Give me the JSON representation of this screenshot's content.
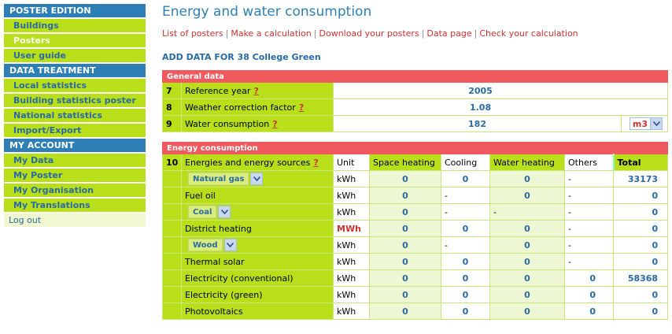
{
  "sidebar": {
    "sections": [
      {
        "title": "POSTER EDITION",
        "items": [
          {
            "label": "Buildings",
            "active": false
          },
          {
            "label": "Posters",
            "active": true
          },
          {
            "label": "User guide",
            "active": false
          }
        ]
      },
      {
        "title": "DATA TREATMENT",
        "items": [
          {
            "label": "Local statistics",
            "active": false
          },
          {
            "label": "Building statistics poster",
            "active": false
          },
          {
            "label": "National statistics",
            "active": false
          },
          {
            "label": "Import/Export",
            "active": false
          }
        ]
      },
      {
        "title": "MY ACCOUNT",
        "items": [
          {
            "label": "My Data",
            "active": false
          },
          {
            "label": "My Poster",
            "active": false
          },
          {
            "label": "My Organisation",
            "active": false
          },
          {
            "label": "My Translations",
            "active": false
          }
        ]
      }
    ],
    "logout": "Log out"
  },
  "header": {
    "title": "Energy and water consumption",
    "links": [
      "List of posters",
      "Make a calculation",
      "Download your posters",
      "Data page",
      "Check your calculation"
    ],
    "subtitle": "ADD DATA FOR 38 College Green"
  },
  "general": {
    "section_title": "General data",
    "rows": [
      {
        "num": "7",
        "label": "Reference year",
        "help": "?",
        "value": "2005"
      },
      {
        "num": "8",
        "label": "Weather correction factor",
        "help": "?",
        "value": "1.08"
      },
      {
        "num": "9",
        "label": "Water consumption",
        "help": "?",
        "value": "182",
        "unit": "m3"
      }
    ]
  },
  "energy": {
    "section_title": "Energy consumption",
    "header": {
      "num": "10",
      "label": "Energies and energy sources",
      "help": "?",
      "unit": "Unit",
      "space_heating": "Space heating",
      "cooling": "Cooling",
      "water_heating": "Water heating",
      "others": "Others",
      "total": "Total"
    },
    "rows": [
      {
        "name": "Natural gas",
        "select": true,
        "unit": "kWh",
        "unit_red": false,
        "space": "0",
        "cooling": "0",
        "water": "0",
        "others": "-",
        "total": "33173"
      },
      {
        "name": "Fuel oil",
        "select": false,
        "unit": "kWh",
        "unit_red": false,
        "space": "0",
        "cooling": "-",
        "water": "0",
        "others": "-",
        "total": "0"
      },
      {
        "name": "Coal",
        "select": true,
        "unit": "kWh",
        "unit_red": false,
        "space": "0",
        "cooling": "-",
        "water": "-",
        "others": "-",
        "total": "0"
      },
      {
        "name": "District heating",
        "select": false,
        "unit": "MWh",
        "unit_red": true,
        "space": "0",
        "cooling": "0",
        "water": "0",
        "others": "-",
        "total": "0"
      },
      {
        "name": "Wood",
        "select": true,
        "unit": "kWh",
        "unit_red": false,
        "space": "0",
        "cooling": "-",
        "water": "0",
        "others": "-",
        "total": "0"
      },
      {
        "name": "Thermal solar",
        "select": false,
        "unit": "kWh",
        "unit_red": false,
        "space": "0",
        "cooling": "0",
        "water": "0",
        "others": "-",
        "total": "0"
      },
      {
        "name": "Electricity (conventional)",
        "select": false,
        "unit": "kWh",
        "unit_red": false,
        "space": "0",
        "cooling": "0",
        "water": "0",
        "others": "0",
        "total": "58368"
      },
      {
        "name": "Electricity (green)",
        "select": false,
        "unit": "kWh",
        "unit_red": false,
        "space": "0",
        "cooling": "0",
        "water": "0",
        "others": "0",
        "total": "0"
      },
      {
        "name": "Photovoltaics",
        "select": false,
        "unit": "kWh",
        "unit_red": false,
        "space": "0",
        "cooling": "0",
        "water": "0",
        "others": "0",
        "total": "0"
      }
    ]
  },
  "icons": {
    "dropdown": "chevron-down-icon"
  }
}
